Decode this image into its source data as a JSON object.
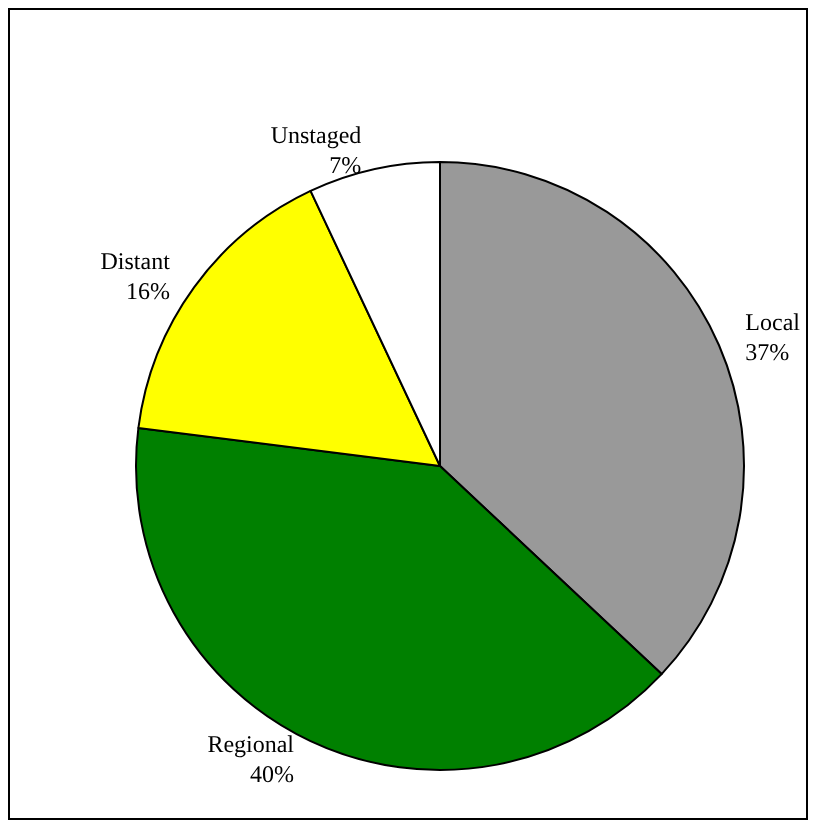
{
  "chart_data": {
    "type": "pie",
    "categories": [
      "Local",
      "Regional",
      "Distant",
      "Unstaged"
    ],
    "values": [
      37,
      40,
      16,
      7
    ],
    "value_labels": [
      "37%",
      "40%",
      "16%",
      "7%"
    ],
    "colors": [
      "#999999",
      "#008000",
      "#ffff00",
      "#ffffff"
    ],
    "legend": false
  }
}
